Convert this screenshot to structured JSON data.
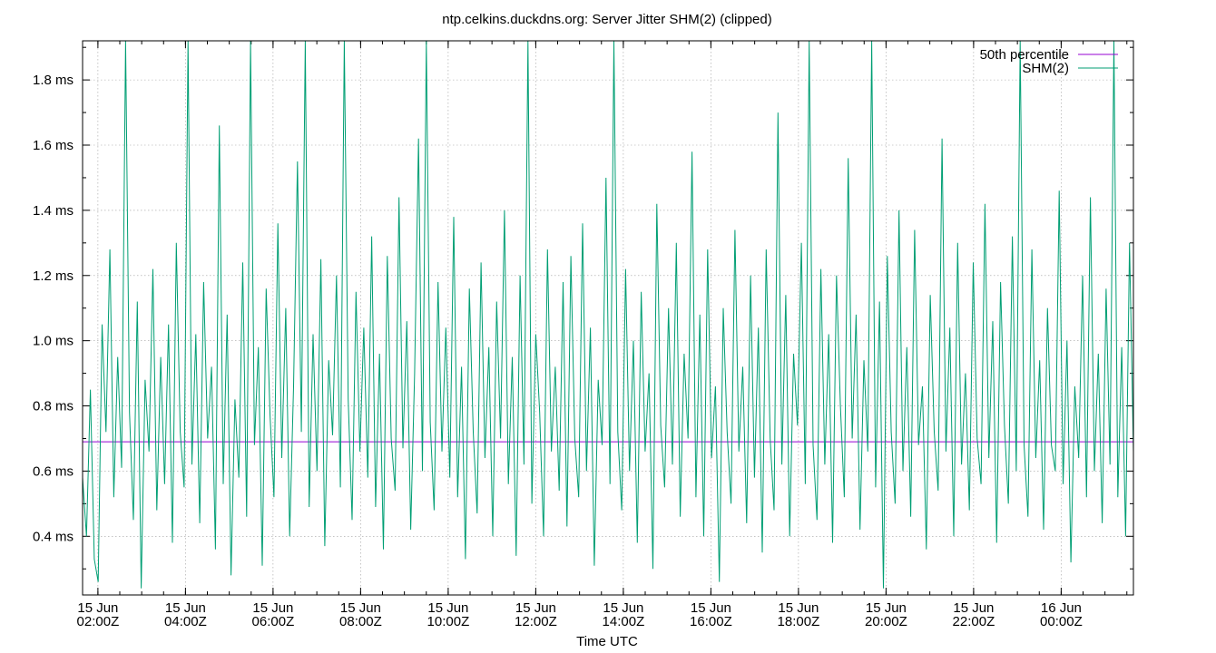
{
  "chart_data": {
    "type": "line",
    "title": "ntp.celkins.duckdns.org: Server Jitter SHM(2) (clipped)",
    "xlabel": "Time UTC",
    "ylabel": "",
    "y_unit": "ms",
    "ylim": [
      0.22,
      1.92
    ],
    "y_ticks": [
      0.4,
      0.6,
      0.8,
      1.0,
      1.2,
      1.4,
      1.6,
      1.8
    ],
    "y_tick_labels": [
      "0.4 ms",
      "0.6 ms",
      "0.8 ms",
      "1.0 ms",
      "1.2 ms",
      "1.4 ms",
      "1.6 ms",
      "1.8 ms"
    ],
    "xlim": [
      "2024-06-15T01:39Z",
      "2024-06-16T01:39Z"
    ],
    "x_ticks": [
      {
        "time": "2024-06-15T02:00Z",
        "date": "15 Jun",
        "label": "02:00Z"
      },
      {
        "time": "2024-06-15T04:00Z",
        "date": "15 Jun",
        "label": "04:00Z"
      },
      {
        "time": "2024-06-15T06:00Z",
        "date": "15 Jun",
        "label": "06:00Z"
      },
      {
        "time": "2024-06-15T08:00Z",
        "date": "15 Jun",
        "label": "08:00Z"
      },
      {
        "time": "2024-06-15T10:00Z",
        "date": "15 Jun",
        "label": "10:00Z"
      },
      {
        "time": "2024-06-15T12:00Z",
        "date": "15 Jun",
        "label": "12:00Z"
      },
      {
        "time": "2024-06-15T14:00Z",
        "date": "15 Jun",
        "label": "14:00Z"
      },
      {
        "time": "2024-06-15T16:00Z",
        "date": "15 Jun",
        "label": "16:00Z"
      },
      {
        "time": "2024-06-15T18:00Z",
        "date": "15 Jun",
        "label": "18:00Z"
      },
      {
        "time": "2024-06-15T20:00Z",
        "date": "15 Jun",
        "label": "20:00Z"
      },
      {
        "time": "2024-06-15T22:00Z",
        "date": "15 Jun",
        "label": "22:00Z"
      },
      {
        "time": "2024-06-16T00:00Z",
        "date": "16 Jun",
        "label": "00:00Z"
      }
    ],
    "grid": true,
    "legend_position": "top-right",
    "series": [
      {
        "name": "50th percentile",
        "color": "#9400d3",
        "kind": "constant",
        "value": 0.69
      },
      {
        "name": "SHM(2)",
        "color": "#009e73",
        "kind": "jitter",
        "values": [
          0.58,
          0.4,
          0.85,
          0.33,
          0.26,
          1.05,
          0.72,
          1.28,
          0.52,
          0.95,
          0.61,
          1.92,
          0.78,
          0.45,
          1.12,
          0.24,
          0.88,
          0.66,
          1.22,
          0.48,
          0.95,
          0.56,
          1.05,
          0.38,
          1.3,
          0.72,
          0.55,
          1.92,
          0.62,
          1.02,
          0.44,
          1.18,
          0.7,
          0.92,
          0.36,
          1.66,
          0.56,
          1.08,
          0.28,
          0.82,
          0.58,
          1.24,
          0.46,
          1.92,
          0.68,
          0.98,
          0.31,
          1.16,
          0.77,
          0.52,
          1.36,
          0.64,
          1.1,
          0.4,
          0.86,
          1.55,
          0.72,
          1.92,
          0.49,
          1.02,
          0.6,
          1.25,
          0.37,
          0.94,
          0.71,
          1.2,
          0.55,
          1.92,
          0.82,
          0.45,
          1.15,
          0.66,
          1.04,
          0.58,
          1.32,
          0.49,
          0.96,
          0.36,
          1.26,
          0.7,
          0.54,
          1.44,
          0.67,
          1.06,
          0.42,
          0.9,
          1.62,
          0.6,
          1.92,
          0.75,
          0.48,
          1.18,
          0.66,
          1.04,
          0.58,
          1.38,
          0.52,
          0.92,
          0.33,
          1.16,
          0.72,
          0.47,
          1.24,
          0.64,
          0.98,
          0.4,
          1.12,
          0.7,
          1.4,
          0.56,
          0.95,
          0.34,
          1.2,
          0.62,
          1.92,
          0.5,
          1.02,
          0.78,
          0.4,
          1.28,
          0.66,
          0.92,
          0.54,
          1.18,
          0.43,
          1.26,
          0.7,
          0.52,
          1.36,
          0.6,
          1.04,
          0.31,
          0.88,
          0.68,
          1.5,
          0.56,
          1.92,
          0.72,
          0.48,
          1.22,
          0.6,
          1.0,
          0.38,
          1.15,
          0.66,
          0.9,
          0.3,
          1.42,
          0.74,
          0.55,
          1.1,
          0.62,
          1.3,
          0.46,
          0.96,
          0.7,
          1.58,
          0.52,
          1.08,
          0.4,
          1.28,
          0.64,
          0.86,
          0.26,
          1.1,
          0.72,
          0.5,
          1.34,
          0.66,
          0.92,
          0.44,
          1.2,
          0.58,
          1.04,
          0.35,
          1.28,
          0.7,
          0.48,
          1.7,
          0.62,
          1.14,
          0.4,
          0.96,
          0.74,
          1.3,
          0.56,
          1.92,
          0.68,
          0.45,
          1.22,
          0.62,
          1.02,
          0.38,
          1.2,
          0.8,
          0.52,
          1.56,
          0.7,
          1.08,
          0.42,
          0.94,
          0.66,
          1.92,
          0.55,
          1.12,
          0.24,
          1.26,
          0.72,
          0.5,
          1.4,
          0.6,
          0.98,
          0.46,
          1.34,
          0.68,
          0.86,
          0.36,
          1.14,
          0.72,
          0.54,
          1.62,
          0.66,
          1.04,
          0.4,
          1.3,
          0.62,
          0.9,
          0.48,
          1.24,
          0.7,
          0.56,
          1.42,
          0.64,
          1.06,
          0.38,
          1.18,
          0.74,
          0.5,
          1.32,
          0.6,
          1.92,
          0.68,
          0.46,
          1.28,
          0.64,
          0.94,
          0.42,
          1.1,
          0.68,
          0.6,
          1.46,
          0.56,
          1.0,
          0.32,
          0.86,
          0.64,
          1.2,
          0.52,
          1.44,
          0.6,
          0.96,
          0.44,
          1.16,
          0.62,
          1.92,
          0.52,
          0.98,
          0.4,
          1.3,
          0.66
        ]
      }
    ]
  }
}
